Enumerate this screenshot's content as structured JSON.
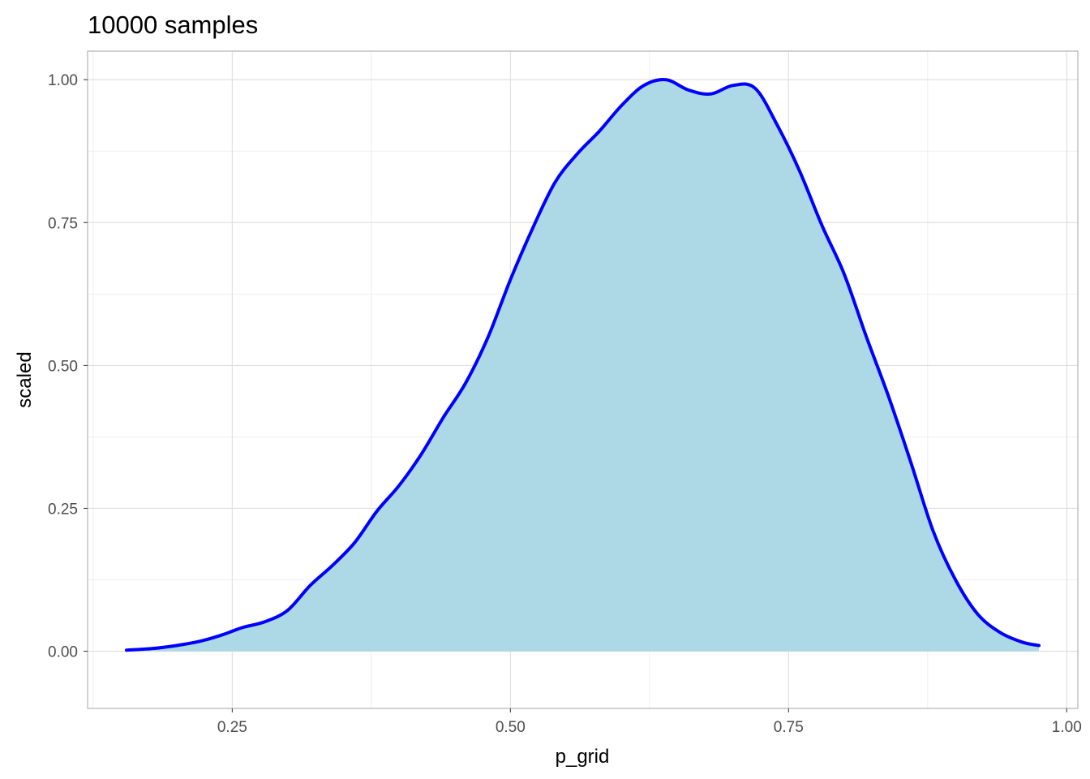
{
  "chart_data": {
    "type": "area",
    "title": "10000 samples",
    "xlabel": "p_grid",
    "ylabel": "scaled",
    "xlim": [
      0.12,
      1.01
    ],
    "ylim": [
      -0.1,
      1.05
    ],
    "x_ticks": [
      0.25,
      0.5,
      0.75,
      1.0
    ],
    "x_tick_labels": [
      "0.25",
      "0.50",
      "0.75",
      "1.00"
    ],
    "y_ticks": [
      0.0,
      0.25,
      0.5,
      0.75,
      1.0
    ],
    "y_tick_labels": [
      "0.00",
      "0.25",
      "0.50",
      "0.75",
      "1.00"
    ],
    "x_minor_ticks": [
      0.125,
      0.375,
      0.625,
      0.875
    ],
    "y_minor_ticks": [
      0.125,
      0.375,
      0.625,
      0.875
    ],
    "grid": true,
    "legend": "none",
    "series": [
      {
        "x": [
          0.155,
          0.18,
          0.2,
          0.22,
          0.24,
          0.25,
          0.26,
          0.28,
          0.3,
          0.32,
          0.34,
          0.36,
          0.38,
          0.4,
          0.42,
          0.44,
          0.46,
          0.48,
          0.5,
          0.52,
          0.54,
          0.56,
          0.58,
          0.6,
          0.62,
          0.64,
          0.66,
          0.68,
          0.7,
          0.72,
          0.74,
          0.76,
          0.78,
          0.8,
          0.82,
          0.84,
          0.86,
          0.88,
          0.9,
          0.92,
          0.94,
          0.96,
          0.975
        ],
        "y": [
          0.002,
          0.005,
          0.01,
          0.017,
          0.028,
          0.035,
          0.042,
          0.052,
          0.072,
          0.115,
          0.15,
          0.19,
          0.245,
          0.29,
          0.345,
          0.41,
          0.47,
          0.55,
          0.65,
          0.74,
          0.82,
          0.87,
          0.91,
          0.955,
          0.99,
          1.0,
          0.982,
          0.975,
          0.99,
          0.985,
          0.92,
          0.84,
          0.745,
          0.66,
          0.55,
          0.445,
          0.33,
          0.21,
          0.125,
          0.065,
          0.033,
          0.016,
          0.01
        ],
        "line_color": "#0000ff",
        "fill_color": "#add8e6"
      }
    ]
  }
}
